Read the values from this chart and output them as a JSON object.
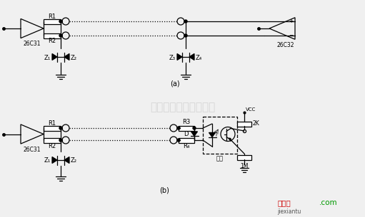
{
  "bg_color": "#f0f0f0",
  "line_color": "#000000",
  "text_color": "#000000",
  "watermark_color": "#c8c8c8",
  "watermark_text": "杭州将睿科技有限公司",
  "label_a": "(a)",
  "label_b": "(b)",
  "ic1_label": "26C31",
  "ic2_label": "26C32",
  "ic3_label": "26C31",
  "brand_red": "#cc0000",
  "brand_green": "#009900",
  "brand_gray": "#555555"
}
